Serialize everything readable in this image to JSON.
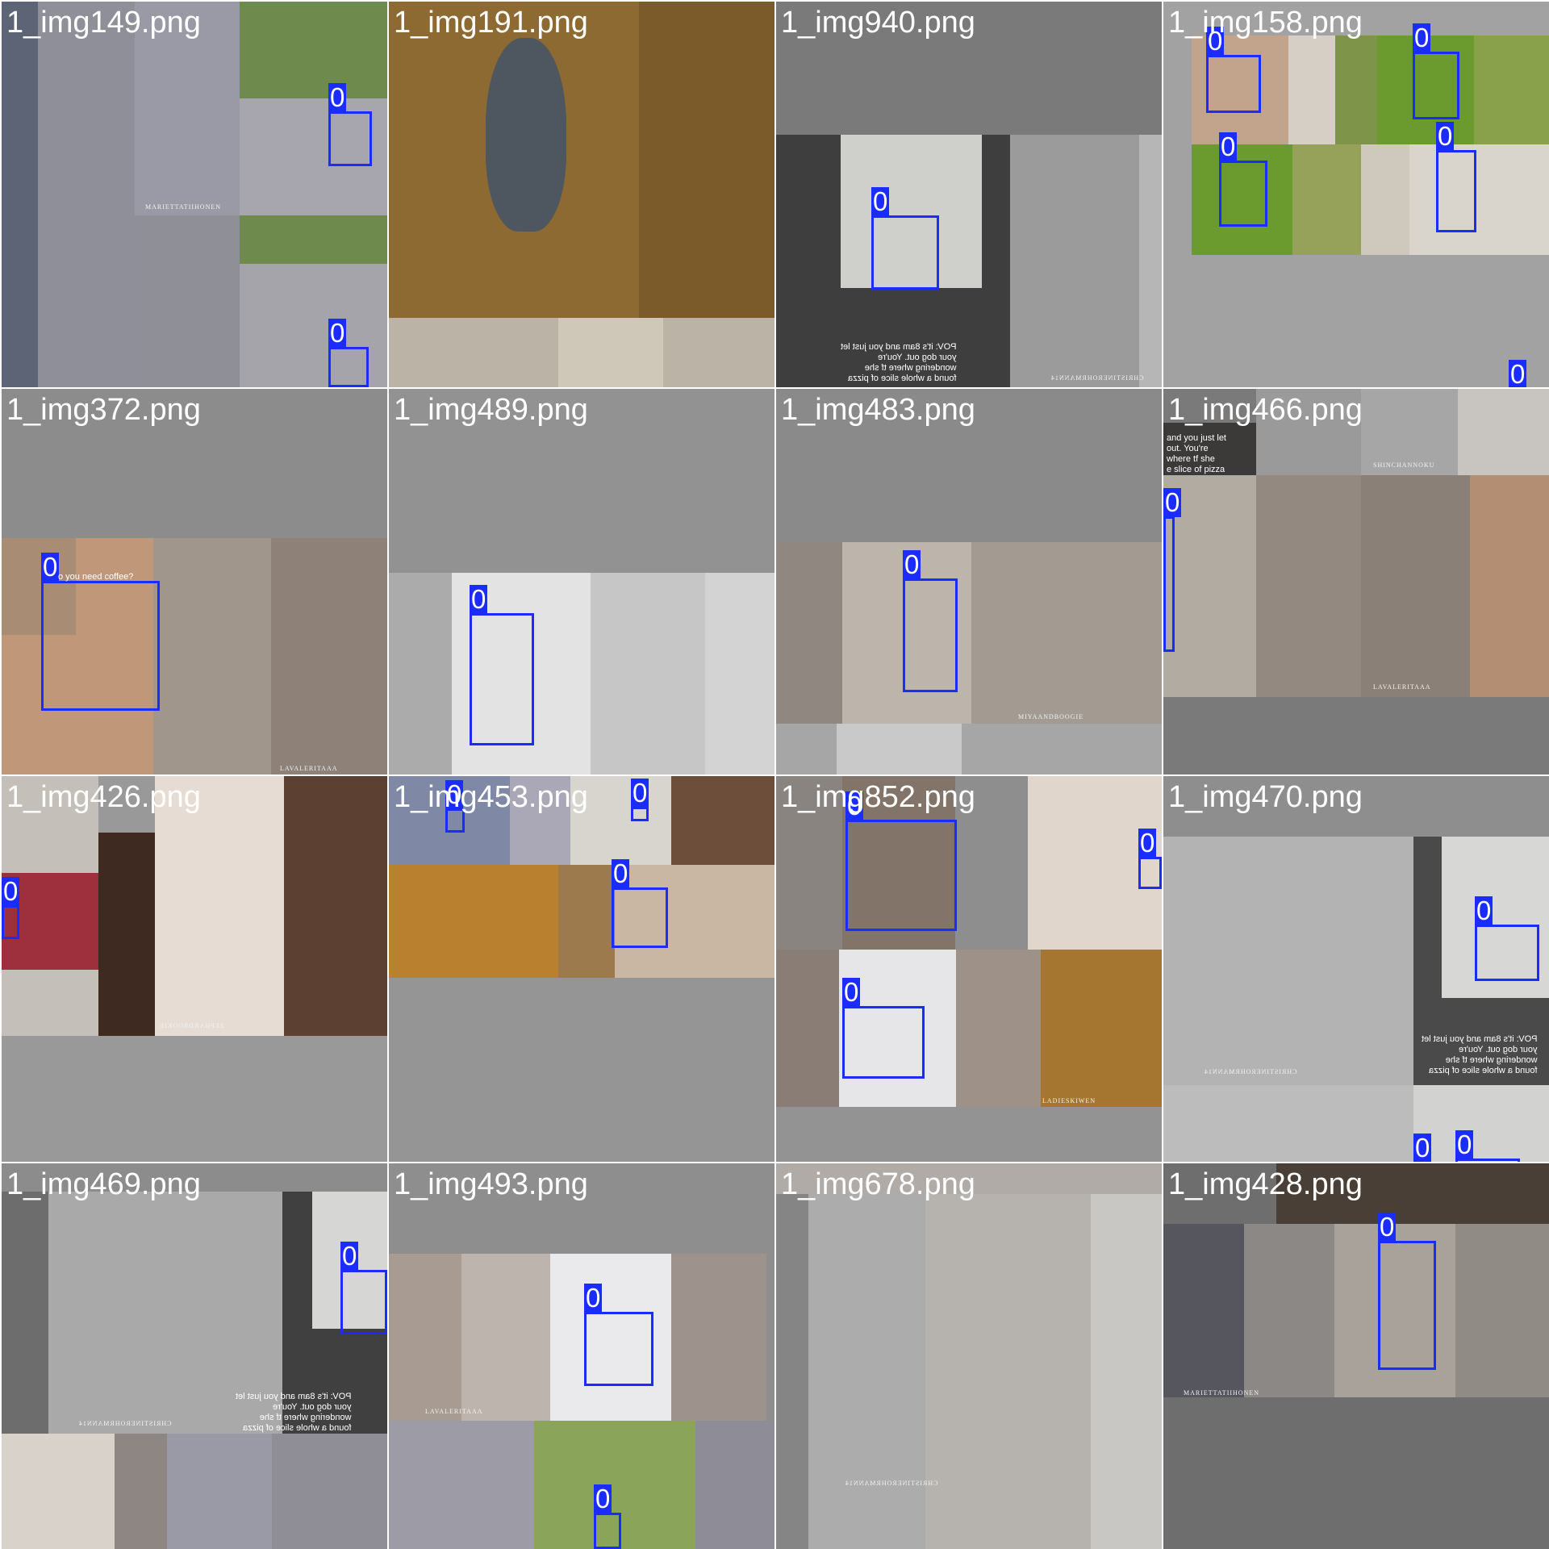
{
  "accent_color": "#1a2cff",
  "tiles": [
    {
      "filename": "1_img149.png",
      "watermark": "MARIETTATIIHONEN",
      "boxes": [
        {
          "label": "0"
        },
        {
          "label": "0"
        }
      ]
    },
    {
      "filename": "1_img191.png",
      "boxes": []
    },
    {
      "filename": "1_img940.png",
      "overlay_text": "POV: it's 8am and you just let\nyour dog out. You're\nwondering where tf she\nfound a whole slice of pizza",
      "watermark": "CHRISTINEROHRMANN14",
      "boxes": [
        {
          "label": "0"
        }
      ]
    },
    {
      "filename": "1_img158.png",
      "boxes": [
        {
          "label": "0"
        },
        {
          "label": "0"
        },
        {
          "label": "0"
        },
        {
          "label": "0"
        },
        {
          "label": "0"
        }
      ]
    },
    {
      "filename": "1_img372.png",
      "overlay_text": "o you need coffee?",
      "watermark": "LAVALERITAAA",
      "boxes": [
        {
          "label": "0"
        }
      ]
    },
    {
      "filename": "1_img489.png",
      "boxes": [
        {
          "label": "0"
        }
      ]
    },
    {
      "filename": "1_img483.png",
      "watermark": "MIYAANDBOOGIE",
      "boxes": [
        {
          "label": "0"
        }
      ]
    },
    {
      "filename": "1_img466.png",
      "overlay_text": "and you just let\nout. You're\nwhere tf she\ne slice of pizza",
      "watermark": "LAVALERITAAA",
      "watermark_2": "SHINCHANNOKU",
      "boxes": [
        {
          "label": "0"
        }
      ]
    },
    {
      "filename": "1_img426.png",
      "watermark": "ZEPHANDBOOKIE",
      "boxes": [
        {
          "label": "0"
        }
      ]
    },
    {
      "filename": "1_img453.png",
      "boxes": [
        {
          "label": "0"
        },
        {
          "label": "0"
        },
        {
          "label": "0"
        }
      ]
    },
    {
      "filename": "1_img852.png",
      "watermark": "LADIESKIWEN",
      "boxes": [
        {
          "label": "0"
        },
        {
          "label": "0"
        },
        {
          "label": "0"
        }
      ]
    },
    {
      "filename": "1_img470.png",
      "overlay_text": "POV: it's 8am and you just let\nyour dog out. You're\nwondering where tf she\nfound a whole slice of pizza",
      "watermark": "CHRISTINEROHRMANN14",
      "boxes": [
        {
          "label": "0"
        },
        {
          "label": "0"
        },
        {
          "label": "0"
        }
      ]
    },
    {
      "filename": "1_img469.png",
      "overlay_text": "POV: it's 8am and you just let\nyour dog out. You're\nwondering where tf she\nfound a whole slice of pizza",
      "watermark": "CHRISTINEROHRMANN14",
      "boxes": [
        {
          "label": "0"
        }
      ]
    },
    {
      "filename": "1_img493.png",
      "watermark": "LAVALERITAAA",
      "boxes": [
        {
          "label": "0"
        },
        {
          "label": "0"
        }
      ]
    },
    {
      "filename": "1_img678.png",
      "watermark": "CHRISTINEROHRMANN14",
      "boxes": []
    },
    {
      "filename": "1_img428.png",
      "watermark": "MARIETTATIIHONEN",
      "boxes": [
        {
          "label": "0"
        }
      ]
    }
  ]
}
